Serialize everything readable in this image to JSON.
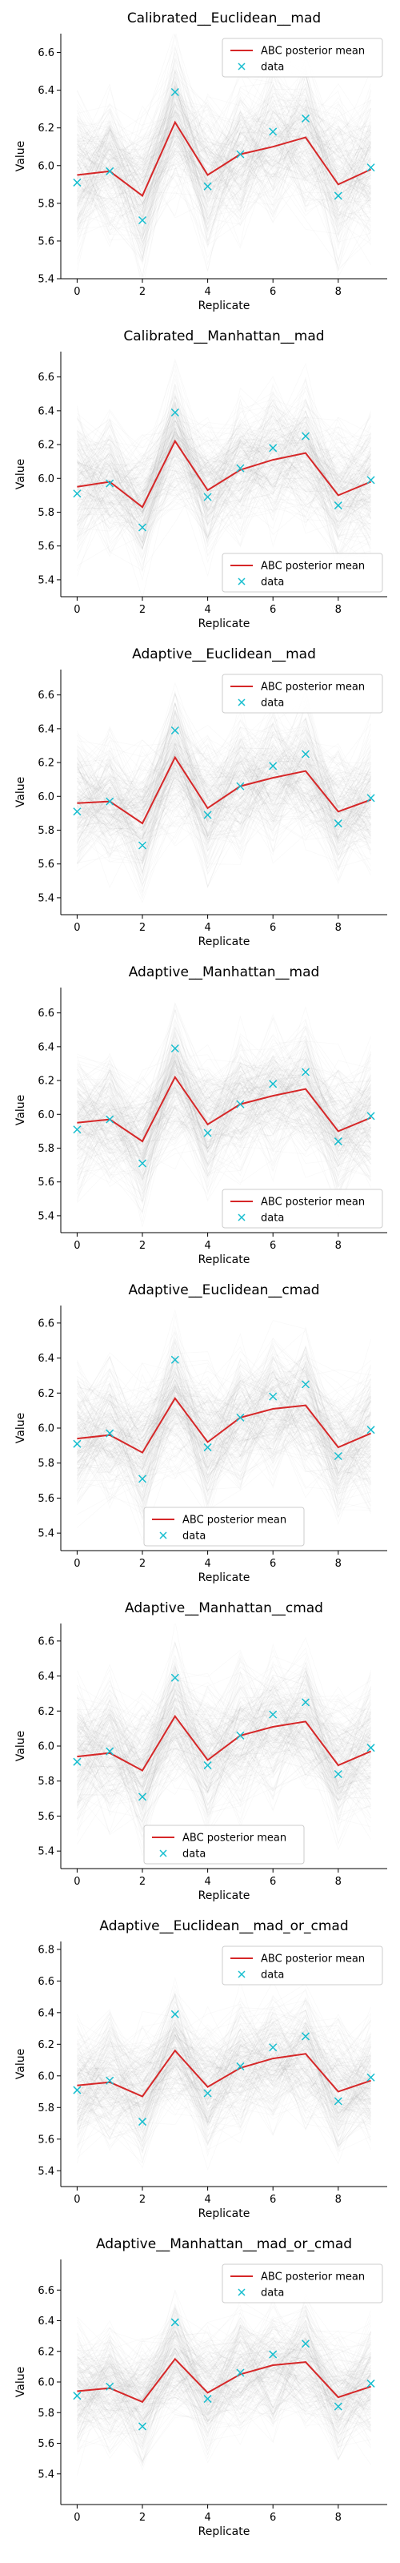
{
  "chart_data": [
    {
      "type": "line",
      "title": "Calibrated__Euclidean__mad",
      "xlabel": "Replicate",
      "ylabel": "Value",
      "x": [
        0,
        1,
        2,
        3,
        4,
        5,
        6,
        7,
        8,
        9
      ],
      "xlim": [
        -0.5,
        9.5
      ],
      "ylim": [
        5.4,
        6.7
      ],
      "xticks": [
        0,
        2,
        4,
        6,
        8
      ],
      "yticks": [
        5.4,
        5.6,
        5.8,
        6.0,
        6.2,
        6.4,
        6.6
      ],
      "grid": false,
      "legend_position": "top-right",
      "colors": {
        "mean": "#d62728",
        "data": "#17becf",
        "samples": "#808080"
      },
      "series": [
        {
          "name": "ABC posterior mean",
          "style": "line",
          "values": [
            5.95,
            5.97,
            5.84,
            6.23,
            5.95,
            6.06,
            6.1,
            6.15,
            5.9,
            5.98
          ]
        },
        {
          "name": "data",
          "style": "x-marker",
          "values": [
            5.91,
            5.97,
            5.71,
            6.39,
            5.89,
            6.06,
            6.18,
            6.25,
            5.84,
            5.99
          ]
        }
      ]
    },
    {
      "type": "line",
      "title": "Calibrated__Manhattan__mad",
      "xlabel": "Replicate",
      "ylabel": "Value",
      "x": [
        0,
        1,
        2,
        3,
        4,
        5,
        6,
        7,
        8,
        9
      ],
      "xlim": [
        -0.5,
        9.5
      ],
      "ylim": [
        5.3,
        6.75
      ],
      "xticks": [
        0,
        2,
        4,
        6,
        8
      ],
      "yticks": [
        5.4,
        5.6,
        5.8,
        6.0,
        6.2,
        6.4,
        6.6
      ],
      "grid": false,
      "legend_position": "bottom-right",
      "colors": {
        "mean": "#d62728",
        "data": "#17becf",
        "samples": "#808080"
      },
      "series": [
        {
          "name": "ABC posterior mean",
          "style": "line",
          "values": [
            5.95,
            5.98,
            5.83,
            6.22,
            5.93,
            6.05,
            6.11,
            6.15,
            5.9,
            5.98
          ]
        },
        {
          "name": "data",
          "style": "x-marker",
          "values": [
            5.91,
            5.97,
            5.71,
            6.39,
            5.89,
            6.06,
            6.18,
            6.25,
            5.84,
            5.99
          ]
        }
      ]
    },
    {
      "type": "line",
      "title": "Adaptive__Euclidean__mad",
      "xlabel": "Replicate",
      "ylabel": "Value",
      "x": [
        0,
        1,
        2,
        3,
        4,
        5,
        6,
        7,
        8,
        9
      ],
      "xlim": [
        -0.5,
        9.5
      ],
      "ylim": [
        5.3,
        6.75
      ],
      "xticks": [
        0,
        2,
        4,
        6,
        8
      ],
      "yticks": [
        5.4,
        5.6,
        5.8,
        6.0,
        6.2,
        6.4,
        6.6
      ],
      "grid": false,
      "legend_position": "top-right",
      "colors": {
        "mean": "#d62728",
        "data": "#17becf",
        "samples": "#808080"
      },
      "series": [
        {
          "name": "ABC posterior mean",
          "style": "line",
          "values": [
            5.96,
            5.97,
            5.84,
            6.23,
            5.93,
            6.06,
            6.11,
            6.15,
            5.91,
            5.98
          ]
        },
        {
          "name": "data",
          "style": "x-marker",
          "values": [
            5.91,
            5.97,
            5.71,
            6.39,
            5.89,
            6.06,
            6.18,
            6.25,
            5.84,
            5.99
          ]
        }
      ]
    },
    {
      "type": "line",
      "title": "Adaptive__Manhattan__mad",
      "xlabel": "Replicate",
      "ylabel": "Value",
      "x": [
        0,
        1,
        2,
        3,
        4,
        5,
        6,
        7,
        8,
        9
      ],
      "xlim": [
        -0.5,
        9.5
      ],
      "ylim": [
        5.3,
        6.75
      ],
      "xticks": [
        0,
        2,
        4,
        6,
        8
      ],
      "yticks": [
        5.4,
        5.6,
        5.8,
        6.0,
        6.2,
        6.4,
        6.6
      ],
      "grid": false,
      "legend_position": "bottom-right",
      "colors": {
        "mean": "#d62728",
        "data": "#17becf",
        "samples": "#808080"
      },
      "series": [
        {
          "name": "ABC posterior mean",
          "style": "line",
          "values": [
            5.95,
            5.97,
            5.84,
            6.22,
            5.94,
            6.06,
            6.11,
            6.15,
            5.9,
            5.98
          ]
        },
        {
          "name": "data",
          "style": "x-marker",
          "values": [
            5.91,
            5.97,
            5.71,
            6.39,
            5.89,
            6.06,
            6.18,
            6.25,
            5.84,
            5.99
          ]
        }
      ]
    },
    {
      "type": "line",
      "title": "Adaptive__Euclidean__cmad",
      "xlabel": "Replicate",
      "ylabel": "Value",
      "x": [
        0,
        1,
        2,
        3,
        4,
        5,
        6,
        7,
        8,
        9
      ],
      "xlim": [
        -0.5,
        9.5
      ],
      "ylim": [
        5.3,
        6.7
      ],
      "xticks": [
        0,
        2,
        4,
        6,
        8
      ],
      "yticks": [
        5.4,
        5.6,
        5.8,
        6.0,
        6.2,
        6.4,
        6.6
      ],
      "grid": false,
      "legend_position": "bottom-center",
      "colors": {
        "mean": "#d62728",
        "data": "#17becf",
        "samples": "#808080"
      },
      "series": [
        {
          "name": "ABC posterior mean",
          "style": "line",
          "values": [
            5.94,
            5.96,
            5.86,
            6.17,
            5.92,
            6.06,
            6.11,
            6.13,
            5.89,
            5.97
          ]
        },
        {
          "name": "data",
          "style": "x-marker",
          "values": [
            5.91,
            5.97,
            5.71,
            6.39,
            5.89,
            6.06,
            6.18,
            6.25,
            5.84,
            5.99
          ]
        }
      ]
    },
    {
      "type": "line",
      "title": "Adaptive__Manhattan__cmad",
      "xlabel": "Replicate",
      "ylabel": "Value",
      "x": [
        0,
        1,
        2,
        3,
        4,
        5,
        6,
        7,
        8,
        9
      ],
      "xlim": [
        -0.5,
        9.5
      ],
      "ylim": [
        5.3,
        6.7
      ],
      "xticks": [
        0,
        2,
        4,
        6,
        8
      ],
      "yticks": [
        5.4,
        5.6,
        5.8,
        6.0,
        6.2,
        6.4,
        6.6
      ],
      "grid": false,
      "legend_position": "bottom-center",
      "colors": {
        "mean": "#d62728",
        "data": "#17becf",
        "samples": "#808080"
      },
      "series": [
        {
          "name": "ABC posterior mean",
          "style": "line",
          "values": [
            5.94,
            5.96,
            5.86,
            6.17,
            5.92,
            6.06,
            6.11,
            6.14,
            5.89,
            5.97
          ]
        },
        {
          "name": "data",
          "style": "x-marker",
          "values": [
            5.91,
            5.97,
            5.71,
            6.39,
            5.89,
            6.06,
            6.18,
            6.25,
            5.84,
            5.99
          ]
        }
      ]
    },
    {
      "type": "line",
      "title": "Adaptive__Euclidean__mad_or_cmad",
      "xlabel": "Replicate",
      "ylabel": "Value",
      "x": [
        0,
        1,
        2,
        3,
        4,
        5,
        6,
        7,
        8,
        9
      ],
      "xlim": [
        -0.5,
        9.5
      ],
      "ylim": [
        5.3,
        6.85
      ],
      "xticks": [
        0,
        2,
        4,
        6,
        8
      ],
      "yticks": [
        5.4,
        5.6,
        5.8,
        6.0,
        6.2,
        6.4,
        6.6,
        6.8
      ],
      "grid": false,
      "legend_position": "top-right",
      "colors": {
        "mean": "#d62728",
        "data": "#17becf",
        "samples": "#808080"
      },
      "series": [
        {
          "name": "ABC posterior mean",
          "style": "line",
          "values": [
            5.94,
            5.96,
            5.87,
            6.16,
            5.93,
            6.05,
            6.11,
            6.14,
            5.9,
            5.97
          ]
        },
        {
          "name": "data",
          "style": "x-marker",
          "values": [
            5.91,
            5.97,
            5.71,
            6.39,
            5.89,
            6.06,
            6.18,
            6.25,
            5.84,
            5.99
          ]
        }
      ]
    },
    {
      "type": "line",
      "title": "Adaptive__Manhattan__mad_or_cmad",
      "xlabel": "Replicate",
      "ylabel": "Value",
      "x": [
        0,
        1,
        2,
        3,
        4,
        5,
        6,
        7,
        8,
        9
      ],
      "xlim": [
        -0.5,
        9.5
      ],
      "ylim": [
        5.2,
        6.8
      ],
      "xticks": [
        0,
        2,
        4,
        6,
        8
      ],
      "yticks": [
        5.4,
        5.6,
        5.8,
        6.0,
        6.2,
        6.4,
        6.6
      ],
      "grid": false,
      "legend_position": "top-right",
      "colors": {
        "mean": "#d62728",
        "data": "#17becf",
        "samples": "#808080"
      },
      "series": [
        {
          "name": "ABC posterior mean",
          "style": "line",
          "values": [
            5.94,
            5.96,
            5.87,
            6.15,
            5.93,
            6.05,
            6.11,
            6.13,
            5.9,
            5.97
          ]
        },
        {
          "name": "data",
          "style": "x-marker",
          "values": [
            5.91,
            5.97,
            5.71,
            6.39,
            5.89,
            6.06,
            6.18,
            6.25,
            5.84,
            5.99
          ]
        }
      ]
    }
  ]
}
